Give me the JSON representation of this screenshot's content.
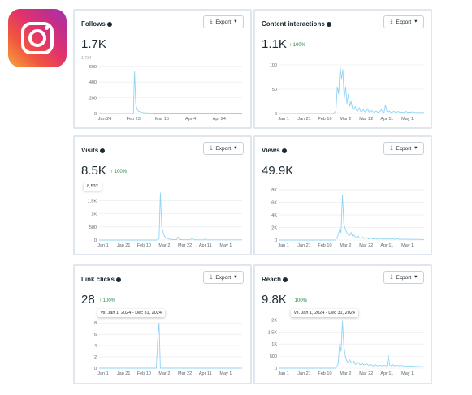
{
  "colors": {
    "line": "#92d3f5",
    "grid": "#e6e9ec",
    "axis_text": "#5a6872",
    "positive": "#1e8a43"
  },
  "logo": {
    "icon": "instagram-logo-icon"
  },
  "cards": [
    {
      "title": "Follows",
      "value": "1.7K",
      "delta": "",
      "export_label": "Export",
      "tooltip": "1,734",
      "chart_data": {
        "type": "line",
        "x_ticks": [
          "Jan 24",
          "Feb 23",
          "Mar 15",
          "Apr 4",
          "Apr 24"
        ],
        "y_ticks": [
          "0",
          "200",
          "400",
          "600"
        ],
        "ylim": [
          0,
          650
        ],
        "values": [
          0,
          0,
          0,
          0,
          0,
          0,
          0,
          0,
          0,
          0,
          0,
          0,
          0,
          0,
          0,
          0,
          0,
          0,
          0,
          0,
          0,
          0,
          0,
          0,
          0,
          0,
          0,
          0,
          0,
          0,
          540,
          120,
          60,
          30,
          25,
          20,
          15,
          10,
          10,
          8,
          8,
          8,
          6,
          6,
          6,
          6,
          5,
          5,
          5,
          5,
          5,
          5,
          5,
          5,
          5,
          5,
          5,
          5,
          5,
          5,
          5,
          5,
          5,
          5,
          5,
          5,
          5,
          5,
          5,
          5,
          5,
          5,
          5,
          5,
          5,
          5,
          5,
          5,
          5,
          5,
          5,
          5,
          5,
          5,
          5,
          5,
          5,
          5,
          5,
          5,
          5,
          5,
          5,
          5,
          5,
          5,
          5,
          5,
          5,
          5,
          5,
          5,
          5,
          5,
          5,
          5,
          5,
          5,
          5,
          5,
          5,
          5,
          5,
          5,
          5,
          5,
          5,
          5,
          5,
          5,
          5,
          5
        ]
      }
    },
    {
      "title": "Content interactions",
      "value": "1.1K",
      "delta": "↑ 100%",
      "export_label": "Export",
      "tooltip": "",
      "chart_data": {
        "type": "line",
        "x_ticks": [
          "Jan 1",
          "Jan 21",
          "Feb 10",
          "Mar 2",
          "Mar 22",
          "Apr 11",
          "May 1"
        ],
        "y_ticks": [
          "0",
          "50",
          "100"
        ],
        "ylim": [
          0,
          105
        ],
        "values": [
          0,
          0,
          0,
          0,
          0,
          0,
          0,
          0,
          0,
          0,
          0,
          0,
          0,
          0,
          0,
          0,
          0,
          0,
          0,
          0,
          0,
          0,
          0,
          0,
          0,
          0,
          0,
          0,
          0,
          0,
          0,
          0,
          0,
          0,
          0,
          0,
          0,
          0,
          0,
          0,
          2,
          5,
          55,
          40,
          98,
          70,
          90,
          30,
          55,
          20,
          40,
          15,
          25,
          10,
          8,
          14,
          6,
          5,
          12,
          4,
          5,
          8,
          3,
          4,
          10,
          3,
          4,
          6,
          3,
          3,
          5,
          3,
          2,
          4,
          8,
          3,
          2,
          18,
          4,
          3,
          5,
          2,
          3,
          4,
          3,
          2,
          4,
          3,
          2,
          3,
          2,
          3,
          4,
          2,
          3,
          2,
          3,
          3,
          2,
          2,
          2,
          2,
          2,
          2,
          2,
          2
        ]
      }
    },
    {
      "title": "Visits",
      "value": "8.5K",
      "delta": "↑ 100%",
      "export_label": "Export",
      "tooltip": "8,532",
      "chart_data": {
        "type": "line",
        "x_ticks": [
          "Jan 1",
          "Jan 21",
          "Feb 10",
          "Mar 2",
          "Mar 22",
          "Apr 11",
          "May 1"
        ],
        "y_ticks": [
          "0",
          "500",
          "1K",
          "1.5K"
        ],
        "ylim": [
          0,
          1950
        ],
        "values": [
          0,
          0,
          0,
          0,
          0,
          0,
          0,
          0,
          0,
          0,
          0,
          0,
          0,
          0,
          0,
          0,
          0,
          0,
          0,
          0,
          0,
          0,
          0,
          0,
          0,
          0,
          0,
          0,
          0,
          0,
          0,
          0,
          0,
          0,
          0,
          0,
          0,
          0,
          0,
          0,
          0,
          0,
          0,
          10,
          50,
          1800,
          500,
          300,
          150,
          80,
          60,
          40,
          30,
          25,
          20,
          18,
          15,
          12,
          120,
          20,
          15,
          12,
          10,
          10,
          8,
          8,
          8,
          8,
          60,
          10,
          8,
          8,
          6,
          6,
          6,
          6,
          6,
          6,
          50,
          6,
          6,
          6,
          5,
          5,
          5,
          5,
          5,
          5,
          5,
          5,
          5,
          5,
          5,
          5,
          5,
          5,
          5,
          5,
          5,
          5,
          5,
          5,
          5,
          5,
          5,
          5
        ]
      }
    },
    {
      "title": "Views",
      "value": "49.9K",
      "delta": "",
      "export_label": "Export",
      "tooltip": "",
      "chart_data": {
        "type": "line",
        "x_ticks": [
          "Jan 1",
          "Jan 21",
          "Feb 10",
          "Mar 2",
          "Mar 22",
          "Apr 11",
          "May 1"
        ],
        "y_ticks": [
          "0",
          "2K",
          "4K",
          "6K",
          "8K"
        ],
        "ylim": [
          0,
          8400
        ],
        "values": [
          0,
          0,
          0,
          0,
          0,
          0,
          0,
          0,
          0,
          0,
          0,
          0,
          0,
          0,
          0,
          0,
          0,
          0,
          0,
          0,
          0,
          0,
          0,
          0,
          0,
          0,
          0,
          0,
          0,
          0,
          0,
          0,
          0,
          0,
          0,
          0,
          0,
          0,
          0,
          0,
          300,
          800,
          1800,
          1200,
          7200,
          2500,
          1800,
          1200,
          900,
          700,
          1200,
          600,
          800,
          500,
          400,
          600,
          300,
          300,
          500,
          250,
          300,
          400,
          200,
          200,
          350,
          200,
          200,
          250,
          150,
          150,
          300,
          150,
          150,
          200,
          150,
          150,
          250,
          150,
          150,
          200,
          150,
          120,
          180,
          150,
          120,
          150,
          120,
          120,
          150,
          100,
          100,
          150,
          100,
          100,
          120,
          100,
          100,
          100,
          100,
          100,
          80,
          80
        ]
      }
    },
    {
      "title": "Link clicks",
      "value": "28",
      "delta": "↑ 100%",
      "export_label": "Export",
      "tooltip": "vs. Jan 1, 2024 - Dec 31, 2024",
      "chart_data": {
        "type": "line",
        "x_ticks": [
          "Jan 1",
          "Jan 21",
          "Feb 10",
          "Mar 2",
          "Mar 22",
          "Apr 11",
          "May 1"
        ],
        "y_ticks": [
          "0",
          "2",
          "4",
          "6",
          "8"
        ],
        "ylim": [
          0,
          8.6
        ],
        "values": [
          0,
          0,
          0,
          0,
          0,
          0,
          0,
          0,
          0,
          0,
          0,
          0,
          0,
          0,
          0,
          0,
          0,
          0,
          0,
          0,
          0,
          0,
          0,
          0,
          0,
          0,
          0,
          0,
          0,
          0,
          0,
          0,
          0,
          0,
          0,
          0,
          0,
          0,
          0,
          0,
          0,
          0,
          0,
          5,
          8,
          0,
          0,
          0,
          0,
          0,
          0,
          0,
          0,
          0,
          0,
          0,
          0,
          0,
          0,
          0,
          0,
          0,
          0,
          0,
          0,
          0,
          0,
          0,
          0,
          0,
          0,
          0,
          0,
          0,
          0,
          0,
          0,
          0,
          0,
          0,
          0,
          0,
          0,
          0,
          0,
          0,
          0,
          0,
          0,
          0,
          0,
          0,
          0,
          0,
          0,
          0,
          0,
          0,
          0,
          0,
          0,
          0,
          0,
          0,
          0,
          0
        ]
      }
    },
    {
      "title": "Reach",
      "value": "9.8K",
      "delta": "↑ 100%",
      "export_label": "Export",
      "tooltip": "vs. Jan 1, 2024 - Dec 31, 2024",
      "chart_data": {
        "type": "line",
        "x_ticks": [
          "Jan 1",
          "Jan 21",
          "Feb 10",
          "Mar 2",
          "Mar 22",
          "Apr 11",
          "May 1"
        ],
        "y_ticks": [
          "0",
          "500",
          "1K",
          "1.5K",
          "2K"
        ],
        "ylim": [
          0,
          2150
        ],
        "values": [
          0,
          0,
          0,
          0,
          0,
          0,
          0,
          0,
          0,
          0,
          0,
          0,
          0,
          0,
          0,
          0,
          0,
          0,
          0,
          0,
          0,
          0,
          0,
          0,
          0,
          0,
          0,
          0,
          0,
          0,
          0,
          0,
          0,
          0,
          0,
          0,
          0,
          0,
          0,
          0,
          50,
          200,
          1000,
          700,
          1950,
          900,
          500,
          300,
          250,
          350,
          250,
          200,
          300,
          150,
          200,
          250,
          150,
          150,
          200,
          120,
          150,
          180,
          120,
          120,
          150,
          100,
          100,
          150,
          100,
          100,
          120,
          100,
          100,
          120,
          100,
          100,
          550,
          120,
          100,
          150,
          100,
          100,
          120,
          100,
          100,
          120,
          100,
          80,
          100,
          80,
          80,
          100,
          80,
          80,
          80,
          70,
          70,
          70,
          70,
          60,
          60,
          60
        ]
      }
    }
  ]
}
